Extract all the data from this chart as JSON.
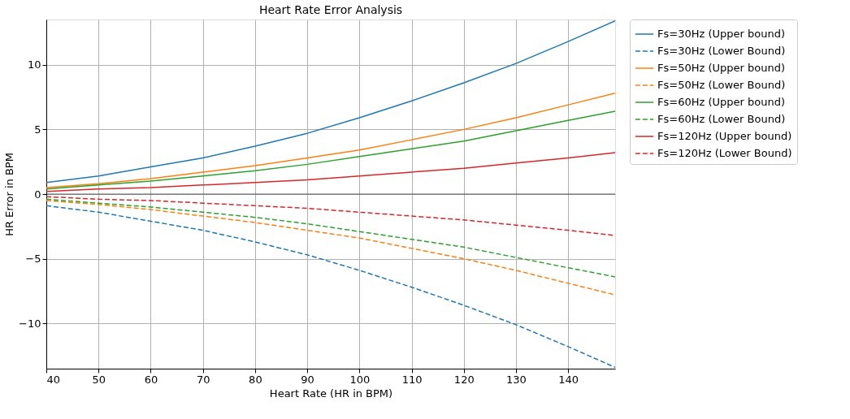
{
  "chart_data": {
    "type": "line",
    "title": "Heart Rate Error Analysis",
    "xlabel": "Heart Rate (HR in BPM)",
    "ylabel": "HR Error in BPM",
    "x": [
      40,
      50,
      60,
      70,
      80,
      90,
      100,
      110,
      120,
      130,
      140,
      149
    ],
    "series": [
      {
        "name": "Fs=30Hz (Upper bound)",
        "color": "#1f77b4",
        "line_style": "solid",
        "values": [
          0.9,
          1.4,
          2.1,
          2.8,
          3.7,
          4.7,
          5.9,
          7.2,
          8.6,
          10.1,
          11.8,
          13.4
        ]
      },
      {
        "name": "Fs=30Hz (Lower Bound)",
        "color": "#1f77b4",
        "line_style": "dashed",
        "values": [
          -0.9,
          -1.4,
          -2.1,
          -2.8,
          -3.7,
          -4.7,
          -5.9,
          -7.2,
          -8.6,
          -10.1,
          -11.8,
          -13.4
        ]
      },
      {
        "name": "Fs=50Hz (Upper bound)",
        "color": "#ff7f0e",
        "line_style": "solid",
        "values": [
          0.5,
          0.8,
          1.2,
          1.7,
          2.2,
          2.8,
          3.4,
          4.2,
          5.0,
          5.9,
          6.9,
          7.8
        ]
      },
      {
        "name": "Fs=50Hz (Lower Bound)",
        "color": "#ff7f0e",
        "line_style": "dashed",
        "values": [
          -0.5,
          -0.8,
          -1.2,
          -1.7,
          -2.2,
          -2.8,
          -3.4,
          -4.2,
          -5.0,
          -5.9,
          -6.9,
          -7.8
        ]
      },
      {
        "name": "Fs=60Hz (Upper bound)",
        "color": "#2ca02c",
        "line_style": "solid",
        "values": [
          0.4,
          0.7,
          1.0,
          1.4,
          1.8,
          2.3,
          2.9,
          3.5,
          4.1,
          4.9,
          5.7,
          6.4
        ]
      },
      {
        "name": "Fs=60Hz (Lower Bound)",
        "color": "#2ca02c",
        "line_style": "dashed",
        "values": [
          -0.4,
          -0.7,
          -1.0,
          -1.4,
          -1.8,
          -2.3,
          -2.9,
          -3.5,
          -4.1,
          -4.9,
          -5.7,
          -6.4
        ]
      },
      {
        "name": "Fs=120Hz (Upper bound)",
        "color": "#d62728",
        "line_style": "solid",
        "values": [
          0.2,
          0.4,
          0.5,
          0.7,
          0.9,
          1.1,
          1.4,
          1.7,
          2.0,
          2.4,
          2.8,
          3.2
        ]
      },
      {
        "name": "Fs=120Hz (Lower Bound)",
        "color": "#d62728",
        "line_style": "dashed",
        "values": [
          -0.2,
          -0.4,
          -0.5,
          -0.7,
          -0.9,
          -1.1,
          -1.4,
          -1.7,
          -2.0,
          -2.4,
          -2.8,
          -3.2
        ]
      }
    ],
    "xlim": [
      40,
      149
    ],
    "xticks": [
      40,
      50,
      60,
      70,
      80,
      90,
      100,
      110,
      120,
      130,
      140
    ],
    "ylim": [
      -13.5,
      13.5
    ],
    "yticks": [
      {
        "value": -10,
        "label": "−10"
      },
      {
        "value": -5,
        "label": "−5"
      },
      0,
      5,
      10
    ],
    "ref_lines": [
      {
        "axis": "y",
        "value": 0,
        "color": "#000000"
      }
    ],
    "grid": true,
    "legend": "top right",
    "marker": "none"
  }
}
